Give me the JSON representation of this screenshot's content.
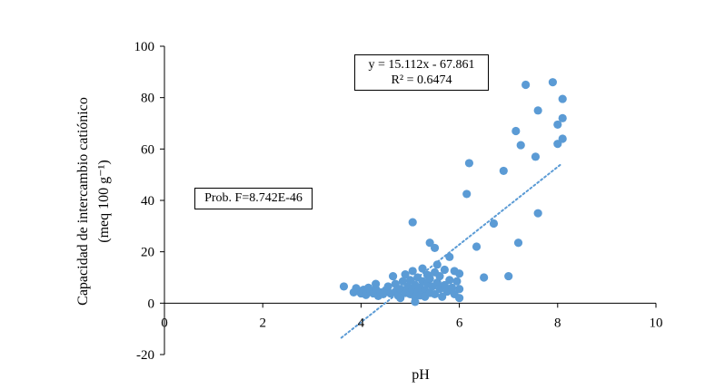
{
  "chart_data": {
    "type": "scatter",
    "title": "",
    "xlabel": "pH",
    "ylabel_line1": "Capacidad de intercambio catiónico",
    "ylabel_line2": "(meq 100 g⁻¹)",
    "xlim": [
      0,
      10
    ],
    "ylim": [
      -20,
      100
    ],
    "x_ticks": [
      0,
      2,
      4,
      6,
      8,
      10
    ],
    "y_ticks": [
      -20,
      0,
      20,
      40,
      60,
      80,
      100
    ],
    "grid": false,
    "marker_color": "#5b9bd5",
    "trendline": {
      "type": "linear",
      "slope": 15.112,
      "intercept": -67.861,
      "x_range": [
        3.6,
        8.05
      ],
      "style": "dotted",
      "color": "#5b9bd5"
    },
    "annotations": {
      "equation": "y = 15.112x - 67.861",
      "r_squared": "R² = 0.6474",
      "prob_f": "Prob. F=8.742E-46"
    },
    "points": [
      [
        3.65,
        6.5
      ],
      [
        3.85,
        4.2
      ],
      [
        3.9,
        5.8
      ],
      [
        3.95,
        4.8
      ],
      [
        4.0,
        3.8
      ],
      [
        4.05,
        5.2
      ],
      [
        4.1,
        3.2
      ],
      [
        4.15,
        6.0
      ],
      [
        4.2,
        4.5
      ],
      [
        4.25,
        3.8
      ],
      [
        4.3,
        5.5
      ],
      [
        4.3,
        7.5
      ],
      [
        4.35,
        2.8
      ],
      [
        4.4,
        4.2
      ],
      [
        4.45,
        3.5
      ],
      [
        4.5,
        5.0
      ],
      [
        4.55,
        6.5
      ],
      [
        4.6,
        3.8
      ],
      [
        4.65,
        10.5
      ],
      [
        4.7,
        4.5
      ],
      [
        4.7,
        7.5
      ],
      [
        4.75,
        3.0
      ],
      [
        4.8,
        5.5
      ],
      [
        4.8,
        2.0
      ],
      [
        4.85,
        8.5
      ],
      [
        4.9,
        4.0
      ],
      [
        4.9,
        11.2
      ],
      [
        4.95,
        6.5
      ],
      [
        5.0,
        3.5
      ],
      [
        5.0,
        9.0
      ],
      [
        5.05,
        5.0
      ],
      [
        5.05,
        12.5
      ],
      [
        5.1,
        2.5
      ],
      [
        5.1,
        7.0
      ],
      [
        5.15,
        4.5
      ],
      [
        5.15,
        10.0
      ],
      [
        5.2,
        6.0
      ],
      [
        5.2,
        3.0
      ],
      [
        5.25,
        8.5
      ],
      [
        5.25,
        13.5
      ],
      [
        5.3,
        5.0
      ],
      [
        5.3,
        2.5
      ],
      [
        5.35,
        7.5
      ],
      [
        5.35,
        11.0
      ],
      [
        5.4,
        4.0
      ],
      [
        5.4,
        9.5
      ],
      [
        5.45,
        6.5
      ],
      [
        5.5,
        3.5
      ],
      [
        5.5,
        12.0
      ],
      [
        5.55,
        8.0
      ],
      [
        5.55,
        15.0
      ],
      [
        5.6,
        5.5
      ],
      [
        5.6,
        10.5
      ],
      [
        5.65,
        2.5
      ],
      [
        5.7,
        7.0
      ],
      [
        5.7,
        13.0
      ],
      [
        5.75,
        4.5
      ],
      [
        5.8,
        9.0
      ],
      [
        5.8,
        18.0
      ],
      [
        5.85,
        6.0
      ],
      [
        5.9,
        12.5
      ],
      [
        5.9,
        3.5
      ],
      [
        5.95,
        8.5
      ],
      [
        6.0,
        5.5
      ],
      [
        6.0,
        2.0
      ],
      [
        6.0,
        11.5
      ],
      [
        5.05,
        31.5
      ],
      [
        5.4,
        23.5
      ],
      [
        5.5,
        21.5
      ],
      [
        5.1,
        0.5
      ],
      [
        6.15,
        42.5
      ],
      [
        6.2,
        54.5
      ],
      [
        6.35,
        22.0
      ],
      [
        6.5,
        10.0
      ],
      [
        6.7,
        31.0
      ],
      [
        6.9,
        51.5
      ],
      [
        7.0,
        10.5
      ],
      [
        7.15,
        67.0
      ],
      [
        7.2,
        23.5
      ],
      [
        7.25,
        61.5
      ],
      [
        7.35,
        85.0
      ],
      [
        7.55,
        57.0
      ],
      [
        7.6,
        35.0
      ],
      [
        7.6,
        75.0
      ],
      [
        7.9,
        86.0
      ],
      [
        8.0,
        69.5
      ],
      [
        8.0,
        62.0
      ],
      [
        8.1,
        72.0
      ],
      [
        8.1,
        64.0
      ],
      [
        8.1,
        79.5
      ]
    ]
  }
}
